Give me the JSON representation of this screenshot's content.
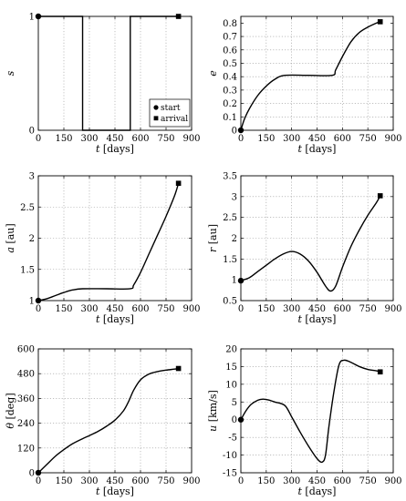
{
  "chart_data": [
    {
      "type": "line",
      "xlabel": "t",
      "xunit": "[days]",
      "ylabel": "s",
      "yunit": "",
      "xlim": [
        0,
        900
      ],
      "ylim": [
        0,
        1
      ],
      "xticks": [
        0,
        150,
        300,
        450,
        600,
        750,
        900
      ],
      "yticks": [
        0,
        1
      ],
      "ytick_labels": [
        "0",
        "1"
      ],
      "grid": true,
      "legend": {
        "position": "bottom-right",
        "entries": [
          "start",
          "arrival"
        ]
      },
      "series": [
        {
          "x": [
            0,
            260,
            260,
            540,
            540,
            823
          ],
          "y": [
            1,
            1,
            0,
            0,
            1,
            1
          ]
        }
      ],
      "start": [
        0,
        1
      ],
      "arrival": [
        823,
        1
      ]
    },
    {
      "type": "line",
      "xlabel": "t",
      "xunit": "[days]",
      "ylabel": "e",
      "yunit": "",
      "xlim": [
        0,
        900
      ],
      "ylim": [
        0,
        0.85
      ],
      "xticks": [
        0,
        150,
        300,
        450,
        600,
        750,
        900
      ],
      "yticks": [
        0,
        0.1,
        0.2,
        0.3,
        0.4,
        0.5,
        0.6,
        0.7,
        0.8
      ],
      "ytick_labels": [
        "0",
        "0.1",
        "0.2",
        "0.3",
        "0.4",
        "0.5",
        "0.6",
        "0.7",
        "0.8"
      ],
      "grid": true,
      "series": [
        {
          "x": [
            0,
            20,
            50,
            100,
            150,
            200,
            260,
            400,
            540,
            560,
            600,
            650,
            700,
            750,
            800,
            823
          ],
          "y": [
            0,
            0.08,
            0.16,
            0.26,
            0.33,
            0.38,
            0.41,
            0.41,
            0.41,
            0.45,
            0.55,
            0.66,
            0.73,
            0.77,
            0.8,
            0.81
          ]
        }
      ],
      "start": [
        0,
        0
      ],
      "arrival": [
        823,
        0.81
      ]
    },
    {
      "type": "line",
      "xlabel": "t",
      "xunit": "[days]",
      "ylabel": "a",
      "yunit": "[au]",
      "xlim": [
        0,
        900
      ],
      "ylim": [
        1,
        3
      ],
      "xticks": [
        0,
        150,
        300,
        450,
        600,
        750,
        900
      ],
      "yticks": [
        1,
        1.5,
        2,
        2.5,
        3
      ],
      "ytick_labels": [
        "1",
        "1.5",
        "2",
        "2.5",
        "3"
      ],
      "grid": true,
      "series": [
        {
          "x": [
            0,
            50,
            100,
            150,
            200,
            260,
            400,
            540,
            560,
            600,
            650,
            700,
            750,
            800,
            823
          ],
          "y": [
            1.0,
            1.03,
            1.08,
            1.13,
            1.17,
            1.19,
            1.19,
            1.19,
            1.25,
            1.45,
            1.75,
            2.05,
            2.35,
            2.68,
            2.88
          ]
        }
      ],
      "start": [
        0,
        1.0
      ],
      "arrival": [
        823,
        2.88
      ]
    },
    {
      "type": "line",
      "xlabel": "t",
      "xunit": "[days]",
      "ylabel": "r",
      "yunit": "[au]",
      "xlim": [
        0,
        900
      ],
      "ylim": [
        0.5,
        3.5
      ],
      "xticks": [
        0,
        150,
        300,
        450,
        600,
        750,
        900
      ],
      "yticks": [
        0.5,
        1,
        1.5,
        2,
        2.5,
        3,
        3.5
      ],
      "ytick_labels": [
        "0.5",
        "1",
        "1.5",
        "2",
        "2.5",
        "3",
        "3.5"
      ],
      "grid": true,
      "series": [
        {
          "x": [
            0,
            50,
            100,
            150,
            200,
            250,
            300,
            350,
            400,
            450,
            500,
            530,
            560,
            600,
            650,
            700,
            750,
            800,
            823
          ],
          "y": [
            0.98,
            1.05,
            1.2,
            1.35,
            1.5,
            1.62,
            1.68,
            1.62,
            1.45,
            1.18,
            0.85,
            0.73,
            0.85,
            1.3,
            1.8,
            2.2,
            2.55,
            2.85,
            3.02
          ]
        }
      ],
      "start": [
        0,
        0.98
      ],
      "arrival": [
        823,
        3.02
      ]
    },
    {
      "type": "line",
      "xlabel": "t",
      "xunit": "[days]",
      "ylabel": "θ",
      "yunit": "[deg]",
      "xlim": [
        0,
        900
      ],
      "ylim": [
        0,
        600
      ],
      "xticks": [
        0,
        150,
        300,
        450,
        600,
        750,
        900
      ],
      "yticks": [
        0,
        120,
        240,
        360,
        480,
        600
      ],
      "ytick_labels": [
        "0",
        "120",
        "240",
        "360",
        "480",
        "600"
      ],
      "grid": true,
      "series": [
        {
          "x": [
            0,
            50,
            100,
            150,
            200,
            260,
            300,
            350,
            400,
            450,
            500,
            530,
            560,
            600,
            650,
            700,
            750,
            800,
            823
          ],
          "y": [
            0,
            40,
            80,
            112,
            140,
            165,
            180,
            200,
            225,
            255,
            300,
            345,
            400,
            450,
            478,
            490,
            497,
            502,
            505
          ]
        }
      ],
      "start": [
        0,
        0
      ],
      "arrival": [
        823,
        505
      ]
    },
    {
      "type": "line",
      "xlabel": "t",
      "xunit": "[days]",
      "ylabel": "u",
      "yunit": "[km/s]",
      "xlim": [
        0,
        900
      ],
      "ylim": [
        -15,
        20
      ],
      "xticks": [
        0,
        150,
        300,
        450,
        600,
        750,
        900
      ],
      "yticks": [
        -15,
        -10,
        -5,
        0,
        5,
        10,
        15,
        20
      ],
      "ytick_labels": [
        "-15",
        "-10",
        "-5",
        "0",
        "5",
        "10",
        "15",
        "20"
      ],
      "grid": true,
      "series": [
        {
          "x": [
            0,
            30,
            60,
            100,
            130,
            160,
            200,
            260,
            300,
            350,
            400,
            450,
            480,
            500,
            520,
            550,
            580,
            610,
            650,
            700,
            750,
            800,
            823
          ],
          "y": [
            0,
            2.5,
            4.3,
            5.5,
            5.8,
            5.6,
            5.0,
            4.0,
            0.8,
            -3.5,
            -7.5,
            -11,
            -12,
            -10,
            -2,
            8,
            15.5,
            16.8,
            16.2,
            15.0,
            14.2,
            13.8,
            13.5
          ]
        }
      ],
      "start": [
        0,
        0
      ],
      "arrival": [
        823,
        13.5
      ]
    }
  ]
}
